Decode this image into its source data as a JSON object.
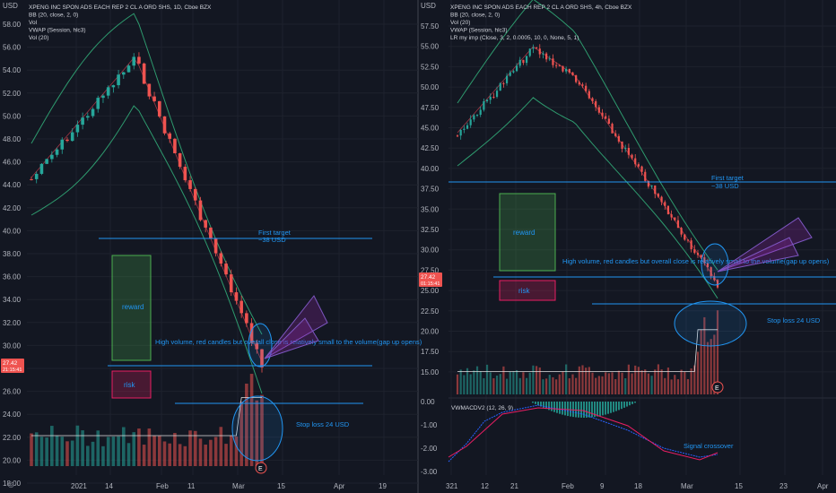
{
  "colors": {
    "background": "#131722",
    "grid": "#1e222d",
    "up": "#26a69a",
    "down": "#ef5350",
    "bb": "#2e9a6e",
    "vwap": "#c43c4c",
    "annotation": "#2196f3",
    "axis_text": "#b2b5be"
  },
  "left": {
    "currency": "USD",
    "legend": [
      "XPENG INC SPON ADS EACH REP 2 CL A ORD SHS, 1D, Cboe BZX",
      "BB (20, close, 2, 0)",
      "Vol",
      "VWAP (Session, hlc3)",
      "Vol (20)"
    ],
    "price_ticks": [
      "58.00",
      "56.00",
      "54.00",
      "52.00",
      "50.00",
      "48.00",
      "46.00",
      "44.00",
      "42.00",
      "40.00",
      "38.00",
      "36.00",
      "34.00",
      "32.00",
      "30.00",
      "28.00",
      "26.00",
      "24.00",
      "22.00",
      "20.00",
      "18.00"
    ],
    "price_tag": [
      "27.42",
      "21:15:41"
    ],
    "date_ticks": [
      "2021",
      "14",
      "Feb",
      "11",
      "Mar",
      "15",
      "Apr",
      "19"
    ],
    "annotations": {
      "first_target": "First target",
      "target_value": "~38 USD",
      "reward": "reward",
      "risk": "risk",
      "volume_note": "High volume, red candles but overall close is relatively small to the volume(gap up opens)",
      "stop_loss": "Stop loss 24 USD"
    },
    "event_badge": "E"
  },
  "right": {
    "currency": "USD",
    "legend": [
      "XPENG INC SPON ADS EACH REP 2 CL A ORD SHS, 4h, Cboe BZX",
      "BB (20, close, 2, 0)",
      "Vol (20)",
      "VWAP (Session, hlc3)",
      "LR my imp (Close, 3, 2, 0.0005, 10, 0, None, 5, 1)"
    ],
    "price_ticks": [
      "57.50",
      "55.00",
      "52.50",
      "50.00",
      "47.50",
      "45.00",
      "42.50",
      "40.00",
      "37.50",
      "35.00",
      "32.50",
      "30.00",
      "27.50",
      "25.00",
      "22.50",
      "20.00",
      "17.50",
      "15.00"
    ],
    "price_tag": [
      "27.42",
      "01:15:41"
    ],
    "macd_legend": "VWMACDV2 (12, 26, 9)",
    "macd_ticks": [
      "0.00",
      "-1.00",
      "-2.00",
      "-3.00"
    ],
    "date_ticks": [
      "321",
      "12",
      "21",
      "Feb",
      "9",
      "18",
      "Mar",
      "15",
      "23",
      "Apr"
    ],
    "annotations": {
      "first_target": "First target",
      "target_value": "~38 USD",
      "reward": "reward",
      "risk": "risk",
      "volume_note": "High volume, red candles but overall close is relatively small to the volume(gap up opens)",
      "stop_loss": "Stop loss 24 USD",
      "signal": "Signal crossover"
    },
    "event_badge": "E"
  }
}
